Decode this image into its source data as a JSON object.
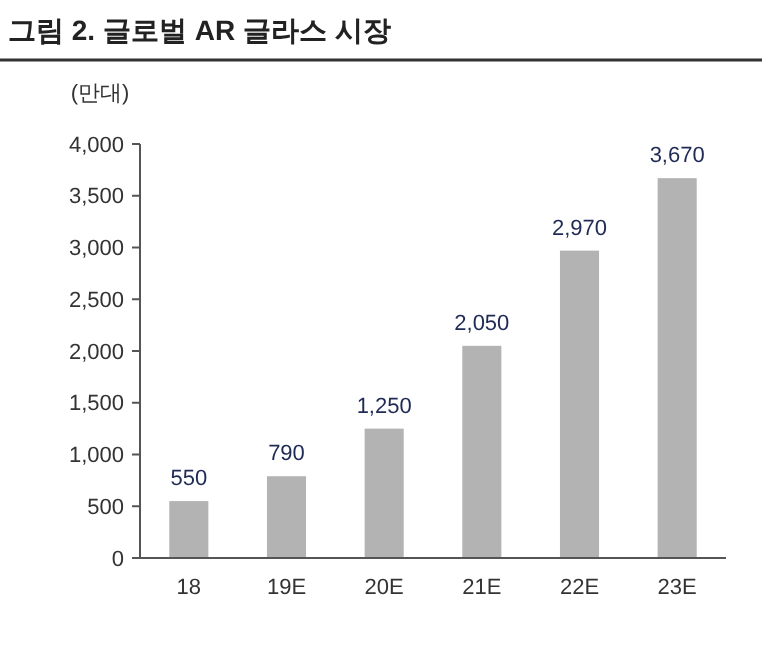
{
  "chart_data": {
    "type": "bar",
    "title": "그림 2. 글로벌 AR 글라스 시장",
    "ylabel": "(만대)",
    "categories": [
      "18",
      "19E",
      "20E",
      "21E",
      "22E",
      "23E"
    ],
    "values": [
      550,
      790,
      1250,
      2050,
      2970,
      3670
    ],
    "color": "#b3b3b3",
    "ylim": [
      0,
      4000
    ],
    "yticks": [
      0,
      {
        "value": 500,
        "label": "500"
      },
      {
        "value": 1000,
        "label": "1,000"
      },
      {
        "value": 1500,
        "label": "1,500"
      },
      {
        "value": 2000,
        "label": "2,000"
      },
      {
        "value": 2500,
        "label": "2,500"
      },
      {
        "value": 3000,
        "label": "3,000"
      },
      {
        "value": 3500,
        "label": "3,500"
      },
      {
        "value": 4000,
        "label": "4,000"
      }
    ],
    "data_labels": true,
    "value_labels": [
      "550",
      "790",
      "1,250",
      "2,050",
      "2,970",
      "3,670"
    ],
    "grid": false
  }
}
